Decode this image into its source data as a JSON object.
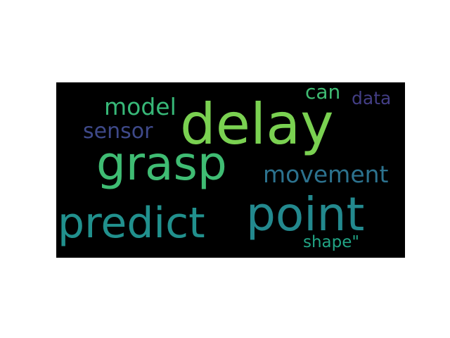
{
  "wordcloud": {
    "background_color": "#000000",
    "page_background_color": "#ffffff",
    "words": [
      {
        "id": "delay",
        "text": "delay",
        "color": "#7ad151"
      },
      {
        "id": "grasp",
        "text": "grasp",
        "color": "#3fbc73"
      },
      {
        "id": "predict",
        "text": "predict",
        "color": "#21908d"
      },
      {
        "id": "point",
        "text": "point",
        "color": "#23898e"
      },
      {
        "id": "movement",
        "text": "movement",
        "color": "#2c728e"
      },
      {
        "id": "model",
        "text": "model",
        "color": "#37b878"
      },
      {
        "id": "sensor",
        "text": "sensor",
        "color": "#3e4989"
      },
      {
        "id": "can",
        "text": "can",
        "color": "#3fbc73"
      },
      {
        "id": "data",
        "text": "data",
        "color": "#433e85"
      },
      {
        "id": "shape",
        "text": "shape\"",
        "color": "#21a585"
      }
    ]
  }
}
